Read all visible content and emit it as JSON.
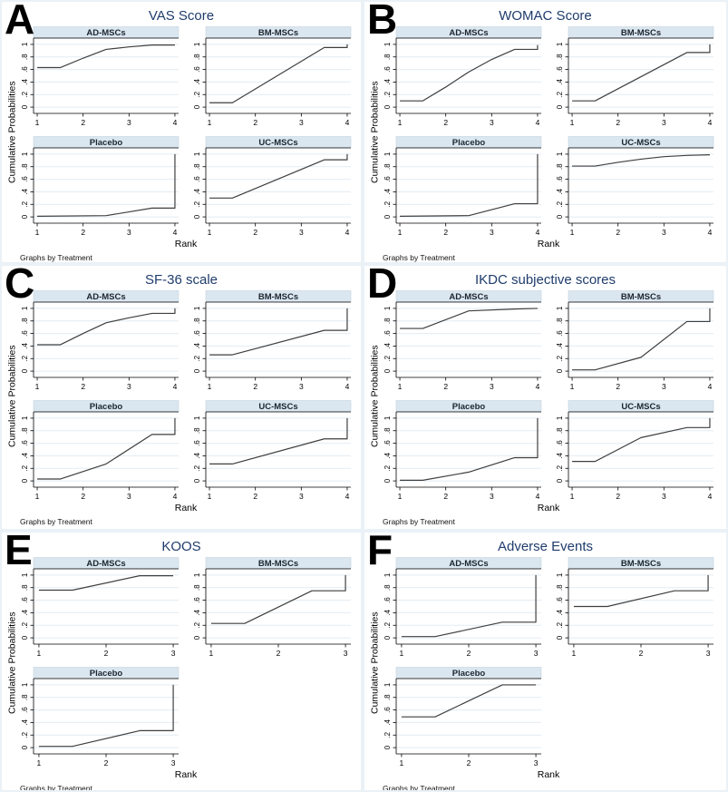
{
  "figure": {
    "footer_note": "Graphs by Treatment",
    "colors": {
      "panel_title": "#1f3c6d",
      "header_bg": "#dbe7f0",
      "header_border": "#c4d2de",
      "header_text": "#1b2530",
      "grid": "#e2ebf3",
      "axis": "#000000",
      "line": "#3f3f3f",
      "panel_border": "#eaf1f7"
    }
  },
  "chart_data": [
    {
      "panel": "A",
      "title": "VAS Score",
      "type": "line",
      "xlabel": "Rank",
      "ylabel": "Cumulative Probabilities",
      "note": "Graphs by Treatment",
      "xlim": [
        1,
        4
      ],
      "ylim": [
        0,
        1
      ],
      "x_ticks": [
        1,
        2,
        3,
        4
      ],
      "y_ticks": [
        0,
        0.2,
        0.4,
        0.6,
        0.8,
        1
      ],
      "y_tick_labels": [
        "0",
        ".2",
        ".4",
        ".6",
        ".8",
        "1"
      ],
      "grid_on": true,
      "legend": "none",
      "series": [
        {
          "name": "AD-MSCs",
          "points": [
            [
              1,
              0.63
            ],
            [
              1.5,
              0.63
            ],
            [
              2,
              0.78
            ],
            [
              2.5,
              0.92
            ],
            [
              3,
              0.96
            ],
            [
              3.5,
              0.99
            ],
            [
              4,
              0.99
            ]
          ]
        },
        {
          "name": "BM-MSCs",
          "points": [
            [
              1,
              0.07
            ],
            [
              1.5,
              0.07
            ],
            [
              3.5,
              0.95
            ],
            [
              4,
              0.95
            ],
            [
              4,
              1.0
            ]
          ]
        },
        {
          "name": "Placebo",
          "points": [
            [
              1,
              0.01
            ],
            [
              2.5,
              0.02
            ],
            [
              3,
              0.08
            ],
            [
              3.5,
              0.14
            ],
            [
              4,
              0.14
            ],
            [
              4,
              1.0
            ]
          ]
        },
        {
          "name": "UC-MSCs",
          "points": [
            [
              1,
              0.3
            ],
            [
              1.5,
              0.3
            ],
            [
              3.5,
              0.91
            ],
            [
              4,
              0.91
            ],
            [
              4,
              1.0
            ]
          ]
        }
      ]
    },
    {
      "panel": "B",
      "title": "WOMAC Score",
      "type": "line",
      "xlabel": "Rank",
      "ylabel": "Cumulative Probabilities",
      "note": "Graphs by Treatment",
      "xlim": [
        1,
        4
      ],
      "ylim": [
        0,
        1
      ],
      "x_ticks": [
        1,
        2,
        3,
        4
      ],
      "y_ticks": [
        0,
        0.2,
        0.4,
        0.6,
        0.8,
        1
      ],
      "y_tick_labels": [
        "0",
        ".2",
        ".4",
        ".6",
        ".8",
        "1"
      ],
      "grid_on": true,
      "legend": "none",
      "series": [
        {
          "name": "AD-MSCs",
          "points": [
            [
              1,
              0.1
            ],
            [
              1.5,
              0.1
            ],
            [
              2,
              0.32
            ],
            [
              2.5,
              0.56
            ],
            [
              3,
              0.76
            ],
            [
              3.5,
              0.92
            ],
            [
              4,
              0.92
            ],
            [
              4,
              0.99
            ]
          ]
        },
        {
          "name": "BM-MSCs",
          "points": [
            [
              1,
              0.1
            ],
            [
              1.5,
              0.1
            ],
            [
              3.5,
              0.87
            ],
            [
              4,
              0.87
            ],
            [
              4,
              1.0
            ]
          ]
        },
        {
          "name": "Placebo",
          "points": [
            [
              1,
              0.01
            ],
            [
              2.5,
              0.02
            ],
            [
              3.5,
              0.21
            ],
            [
              4,
              0.21
            ],
            [
              4,
              1.0
            ]
          ]
        },
        {
          "name": "UC-MSCs",
          "points": [
            [
              1,
              0.81
            ],
            [
              1.5,
              0.81
            ],
            [
              2,
              0.87
            ],
            [
              2.5,
              0.92
            ],
            [
              3,
              0.96
            ],
            [
              3.5,
              0.98
            ],
            [
              4,
              0.99
            ]
          ]
        }
      ]
    },
    {
      "panel": "C",
      "title": "SF-36 scale",
      "type": "line",
      "xlabel": "Rank",
      "ylabel": "Cumulative Probabilities",
      "note": "Graphs by Treatment",
      "xlim": [
        1,
        4
      ],
      "ylim": [
        0,
        1
      ],
      "x_ticks": [
        1,
        2,
        3,
        4
      ],
      "y_ticks": [
        0,
        0.2,
        0.4,
        0.6,
        0.8,
        1
      ],
      "y_tick_labels": [
        "0",
        ".2",
        ".4",
        ".6",
        ".8",
        "1"
      ],
      "grid_on": true,
      "legend": "none",
      "series": [
        {
          "name": "AD-MSCs",
          "points": [
            [
              1,
              0.42
            ],
            [
              1.5,
              0.42
            ],
            [
              2,
              0.6
            ],
            [
              2.5,
              0.77
            ],
            [
              3,
              0.85
            ],
            [
              3.5,
              0.92
            ],
            [
              4,
              0.92
            ],
            [
              4,
              1.0
            ]
          ]
        },
        {
          "name": "BM-MSCs",
          "points": [
            [
              1,
              0.26
            ],
            [
              1.5,
              0.26
            ],
            [
              3.5,
              0.65
            ],
            [
              4,
              0.65
            ],
            [
              4,
              1.0
            ]
          ]
        },
        {
          "name": "Placebo",
          "points": [
            [
              1,
              0.03
            ],
            [
              1.5,
              0.03
            ],
            [
              2.5,
              0.27
            ],
            [
              3.5,
              0.74
            ],
            [
              4,
              0.74
            ],
            [
              4,
              1.0
            ]
          ]
        },
        {
          "name": "UC-MSCs",
          "points": [
            [
              1,
              0.27
            ],
            [
              1.5,
              0.27
            ],
            [
              3.5,
              0.67
            ],
            [
              4,
              0.67
            ],
            [
              4,
              1.0
            ]
          ]
        }
      ]
    },
    {
      "panel": "D",
      "title": "IKDC subjective scores",
      "type": "line",
      "xlabel": "Rank",
      "ylabel": "Cumulative Probabilities",
      "note": "Graphs by Treatment",
      "xlim": [
        1,
        4
      ],
      "ylim": [
        0,
        1
      ],
      "x_ticks": [
        1,
        2,
        3,
        4
      ],
      "y_ticks": [
        0,
        0.2,
        0.4,
        0.6,
        0.8,
        1
      ],
      "y_tick_labels": [
        "0",
        ".2",
        ".4",
        ".6",
        ".8",
        "1"
      ],
      "grid_on": true,
      "legend": "none",
      "series": [
        {
          "name": "AD-MSCs",
          "points": [
            [
              1,
              0.68
            ],
            [
              1.5,
              0.68
            ],
            [
              2.5,
              0.96
            ],
            [
              3.5,
              0.99
            ],
            [
              4,
              1.0
            ]
          ]
        },
        {
          "name": "BM-MSCs",
          "points": [
            [
              1,
              0.02
            ],
            [
              1.5,
              0.02
            ],
            [
              2.5,
              0.22
            ],
            [
              3.5,
              0.79
            ],
            [
              4,
              0.79
            ],
            [
              4,
              1.0
            ]
          ]
        },
        {
          "name": "Placebo",
          "points": [
            [
              1,
              0.01
            ],
            [
              1.5,
              0.01
            ],
            [
              2.5,
              0.14
            ],
            [
              3.5,
              0.37
            ],
            [
              4,
              0.37
            ],
            [
              4,
              1.0
            ]
          ]
        },
        {
          "name": "UC-MSCs",
          "points": [
            [
              1,
              0.31
            ],
            [
              1.5,
              0.31
            ],
            [
              2.5,
              0.69
            ],
            [
              3.5,
              0.85
            ],
            [
              4,
              0.85
            ],
            [
              4,
              1.0
            ]
          ]
        }
      ]
    },
    {
      "panel": "E",
      "title": "KOOS",
      "type": "line",
      "xlabel": "Rank",
      "ylabel": "Cumulative Probabilities",
      "note": "Graphs by Treatment",
      "xlim": [
        1,
        3
      ],
      "ylim": [
        0,
        1
      ],
      "x_ticks": [
        1,
        2,
        3
      ],
      "y_ticks": [
        0,
        0.2,
        0.4,
        0.6,
        0.8,
        1
      ],
      "y_tick_labels": [
        "0",
        ".2",
        ".4",
        ".6",
        ".8",
        "1"
      ],
      "grid_on": true,
      "legend": "none",
      "series": [
        {
          "name": "AD-MSCs",
          "points": [
            [
              1,
              0.76
            ],
            [
              1.5,
              0.76
            ],
            [
              2.5,
              0.99
            ],
            [
              3,
              0.99
            ]
          ]
        },
        {
          "name": "BM-MSCs",
          "points": [
            [
              1,
              0.23
            ],
            [
              1.5,
              0.23
            ],
            [
              2.5,
              0.75
            ],
            [
              3,
              0.75
            ],
            [
              3,
              1.0
            ]
          ]
        },
        {
          "name": "Placebo",
          "points": [
            [
              1,
              0.02
            ],
            [
              1.5,
              0.02
            ],
            [
              2.5,
              0.27
            ],
            [
              3,
              0.27
            ],
            [
              3,
              1.0
            ]
          ]
        }
      ]
    },
    {
      "panel": "F",
      "title": "Adverse Events",
      "type": "line",
      "xlabel": "Rank",
      "ylabel": "Cumulative Probabilities",
      "note": "Graphs by Treatment",
      "xlim": [
        1,
        3
      ],
      "ylim": [
        0,
        1
      ],
      "x_ticks": [
        1,
        2,
        3
      ],
      "y_ticks": [
        0,
        0.2,
        0.4,
        0.6,
        0.8,
        1
      ],
      "y_tick_labels": [
        "0",
        ".2",
        ".4",
        ".6",
        ".8",
        "1"
      ],
      "grid_on": true,
      "legend": "none",
      "series": [
        {
          "name": "AD-MSCs",
          "points": [
            [
              1,
              0.02
            ],
            [
              1.5,
              0.02
            ],
            [
              2.5,
              0.25
            ],
            [
              3,
              0.25
            ],
            [
              3,
              1.0
            ]
          ]
        },
        {
          "name": "BM-MSCs",
          "points": [
            [
              1,
              0.5
            ],
            [
              1.5,
              0.5
            ],
            [
              2.5,
              0.75
            ],
            [
              3,
              0.75
            ],
            [
              3,
              1.0
            ]
          ]
        },
        {
          "name": "Placebo",
          "points": [
            [
              1,
              0.49
            ],
            [
              1.5,
              0.49
            ],
            [
              2.5,
              1.0
            ],
            [
              3,
              1.0
            ]
          ]
        }
      ]
    }
  ]
}
